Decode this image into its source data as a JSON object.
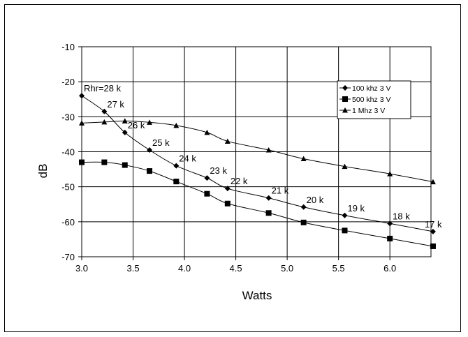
{
  "chart_data": {
    "type": "line",
    "title": "",
    "xlabel": "Watts",
    "ylabel": "dB",
    "xlim": [
      3.0,
      6.4
    ],
    "ylim": [
      -70,
      -10
    ],
    "x_ticks": [
      "3.0",
      "3.5",
      "4.0",
      "4.5",
      "5.0",
      "5.5",
      "6.0"
    ],
    "x_tick_values": [
      3.0,
      3.5,
      4.0,
      4.5,
      5.0,
      5.5,
      6.0
    ],
    "y_ticks": [
      "-10",
      "-20",
      "-30",
      "-40",
      "-50",
      "-60",
      "-70"
    ],
    "y_tick_values": [
      -10,
      -20,
      -30,
      -40,
      -50,
      -60,
      -70
    ],
    "grid": true,
    "legend_position": "top-right",
    "series": [
      {
        "name": "100 khz 3 V",
        "marker": "diamond",
        "x": [
          3.0,
          3.22,
          3.42,
          3.66,
          3.92,
          4.22,
          4.42,
          4.82,
          5.16,
          5.56,
          6.0,
          6.42
        ],
        "y": [
          -24,
          -28.5,
          -34.5,
          -39.5,
          -44,
          -47.5,
          -50.5,
          -53.2,
          -55.8,
          -58.2,
          -60.5,
          -62.8
        ]
      },
      {
        "name": "500 khz 3 V",
        "marker": "square",
        "x": [
          3.0,
          3.22,
          3.42,
          3.66,
          3.92,
          4.22,
          4.42,
          4.82,
          5.16,
          5.56,
          6.0,
          6.42
        ],
        "y": [
          -43,
          -43,
          -43.8,
          -45.5,
          -48.5,
          -52,
          -54.8,
          -57.5,
          -60.2,
          -62.5,
          -64.8,
          -67
        ]
      },
      {
        "name": "1 Mhz 3 V",
        "marker": "triangle",
        "x": [
          3.0,
          3.22,
          3.42,
          3.66,
          3.92,
          4.22,
          4.42,
          4.82,
          5.16,
          5.56,
          6.0,
          6.42
        ],
        "y": [
          -31.8,
          -31.5,
          -31.2,
          -31.6,
          -32.5,
          -34.5,
          -37,
          -39.5,
          -42,
          -44.2,
          -46.3,
          -48.6
        ]
      }
    ],
    "annotations": [
      {
        "text": "Rhr=28 k",
        "x": 3.0,
        "y": -24
      },
      {
        "text": "27 k",
        "x": 3.22,
        "y": -28.5
      },
      {
        "text": "26 k",
        "x": 3.42,
        "y": -34.5
      },
      {
        "text": "25 k",
        "x": 3.66,
        "y": -39.5
      },
      {
        "text": "24 k",
        "x": 3.92,
        "y": -44
      },
      {
        "text": "23 k",
        "x": 4.22,
        "y": -47.5
      },
      {
        "text": "22 k",
        "x": 4.42,
        "y": -50.5
      },
      {
        "text": "21 k",
        "x": 4.82,
        "y": -53.2
      },
      {
        "text": "20 k",
        "x": 5.16,
        "y": -55.8
      },
      {
        "text": "19 k",
        "x": 5.56,
        "y": -58.2
      },
      {
        "text": "18 k",
        "x": 6.0,
        "y": -60.5
      },
      {
        "text": "17 k",
        "x": 6.42,
        "y": -62.8
      }
    ]
  }
}
